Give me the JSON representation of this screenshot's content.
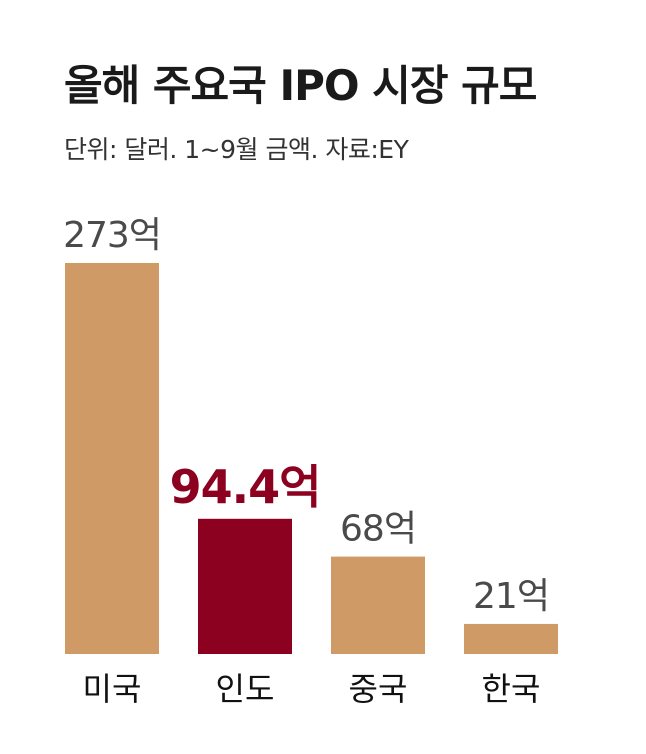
{
  "title": "올해 주요국 IPO 시장 규모",
  "subtitle": "단위: 달러. 1~9월 금액. 자료:EY",
  "colors": {
    "default_bar": "#CF9A66",
    "highlight_bar": "#8C0020",
    "value_label": "#4a4a4a",
    "category_label": "#111111"
  },
  "chart_data": {
    "type": "bar",
    "title": "올해 주요국 IPO 시장 규모",
    "subtitle": "단위: 달러. 1~9월 금액. 자료:EY",
    "unit": "억",
    "categories": [
      "미국",
      "인도",
      "중국",
      "한국"
    ],
    "values": [
      273,
      94.4,
      68,
      21
    ],
    "value_labels": [
      "273억",
      "94.4억",
      "68억",
      "21억"
    ],
    "highlight_index": 1,
    "ylim": [
      0,
      273
    ],
    "grid": false,
    "legend": "none"
  }
}
